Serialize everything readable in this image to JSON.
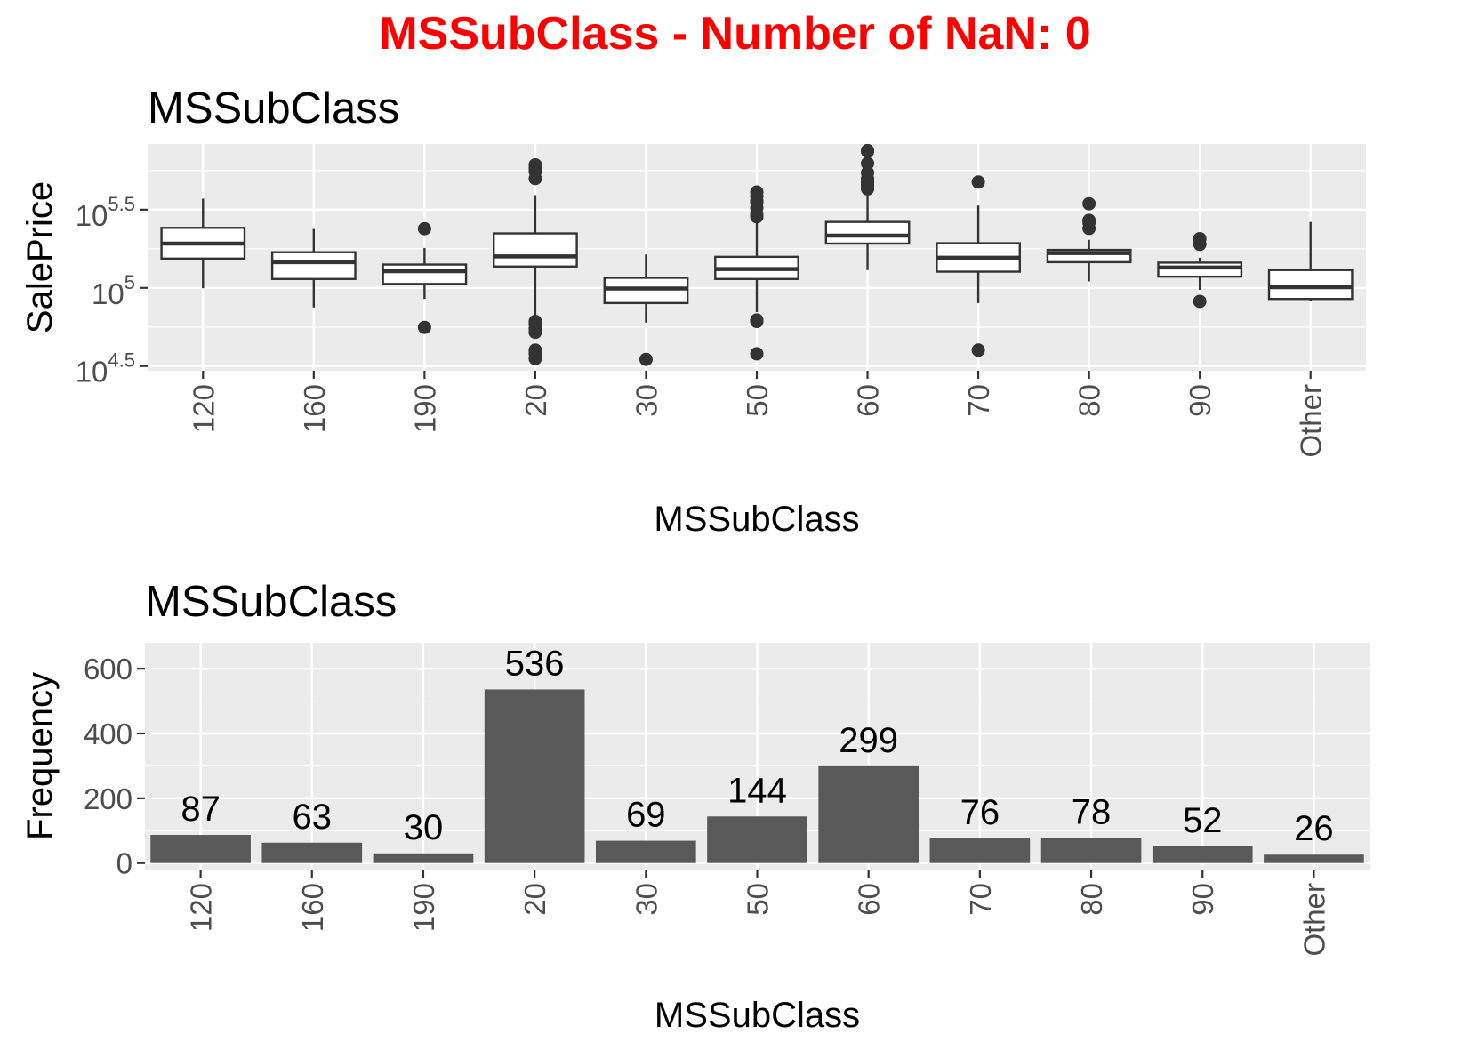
{
  "page_title": "MSSubClass - Number of NaN: 0",
  "colors": {
    "title": "#ff0000",
    "panel": "#ebebeb",
    "grid": "#ffffff",
    "bar_fill": "#595959",
    "box_outline": "#333333",
    "box_fill": "#ffffff",
    "axis_text": "#4d4d4d"
  },
  "chart_data": [
    {
      "type": "boxplot",
      "title": "MSSubClass",
      "xlabel": "MSSubClass",
      "ylabel": "SalePrice",
      "y_scale": "log10",
      "ylim_log10": [
        4.47,
        5.92
      ],
      "y_ticks": [
        {
          "log10": 4.5,
          "base": "10",
          "exp": "4.5"
        },
        {
          "log10": 5.0,
          "base": "10",
          "exp": "5"
        },
        {
          "log10": 5.5,
          "base": "10",
          "exp": "5.5"
        }
      ],
      "grid": true,
      "categories": [
        "120",
        "160",
        "190",
        "20",
        "30",
        "50",
        "60",
        "70",
        "80",
        "90",
        "Other"
      ],
      "boxes": [
        {
          "category": "120",
          "whisker_low": 99500,
          "q1": 154000,
          "median": 192000,
          "q3": 242000,
          "whisker_high": 372000,
          "outliers": []
        },
        {
          "category": "160",
          "whisker_low": 75000,
          "q1": 114000,
          "median": 146000,
          "q3": 169000,
          "whisker_high": 238000,
          "outliers": []
        },
        {
          "category": "190",
          "whisker_low": 85000,
          "q1": 106000,
          "median": 128000,
          "q3": 141000,
          "whisker_high": 180000,
          "outliers": [
            55900,
            239000
          ]
        },
        {
          "category": "20",
          "whisker_low": 65000,
          "q1": 137000,
          "median": 159000,
          "q3": 223000,
          "whisker_high": 392000,
          "outliers": [
            35311,
            37900,
            39300,
            40000,
            52000,
            55000,
            58500,
            61000,
            500000,
            555000,
            582933,
            611657
          ]
        },
        {
          "category": "30",
          "whisker_low": 60000,
          "q1": 80000,
          "median": 99000,
          "q3": 116000,
          "whisker_high": 163500,
          "outliers": [
            34900
          ]
        },
        {
          "category": "50",
          "whisker_low": 70000,
          "q1": 114000,
          "median": 132000,
          "q3": 158000,
          "whisker_high": 265000,
          "outliers": [
            37900,
            61000,
            62383,
            285000,
            295000,
            325000,
            350000,
            360000,
            385000,
            410000
          ]
        },
        {
          "category": "60",
          "whisker_low": 130000,
          "q1": 192000,
          "median": 216000,
          "q3": 264000,
          "whisker_high": 415000,
          "outliers": [
            430000,
            445000,
            460000,
            475000,
            500000,
            545000,
            625000,
            745000,
            755000
          ]
        },
        {
          "category": "70",
          "whisker_low": 80000,
          "q1": 127000,
          "median": 156000,
          "q3": 193000,
          "whisker_high": 336000,
          "outliers": [
            40000,
            475000
          ]
        },
        {
          "category": "80",
          "whisker_low": 110000,
          "q1": 146000,
          "median": 167000,
          "q3": 175000,
          "whisker_high": 203000,
          "outliers": [
            240000,
            262500,
            270000,
            345000
          ]
        },
        {
          "category": "90",
          "whisker_low": 97000,
          "q1": 118000,
          "median": 135000,
          "q3": 145000,
          "whisker_high": 156000,
          "outliers": [
            82000,
            190000,
            206300
          ]
        },
        {
          "category": "Other",
          "whisker_low": 83000,
          "q1": 85000,
          "median": 101000,
          "q3": 130000,
          "whisker_high": 264000,
          "outliers": []
        }
      ]
    },
    {
      "type": "bar",
      "title": "MSSubClass",
      "xlabel": "MSSubClass",
      "ylabel": "Frequency",
      "ylim": [
        -20,
        680
      ],
      "y_ticks": [
        0,
        200,
        400,
        600
      ],
      "grid": true,
      "categories": [
        "120",
        "160",
        "190",
        "20",
        "30",
        "50",
        "60",
        "70",
        "80",
        "90",
        "Other"
      ],
      "values": [
        87,
        63,
        30,
        536,
        69,
        144,
        299,
        76,
        78,
        52,
        26
      ],
      "data_labels": [
        "87",
        "63",
        "30",
        "536",
        "69",
        "144",
        "299",
        "76",
        "78",
        "52",
        "26"
      ]
    }
  ]
}
